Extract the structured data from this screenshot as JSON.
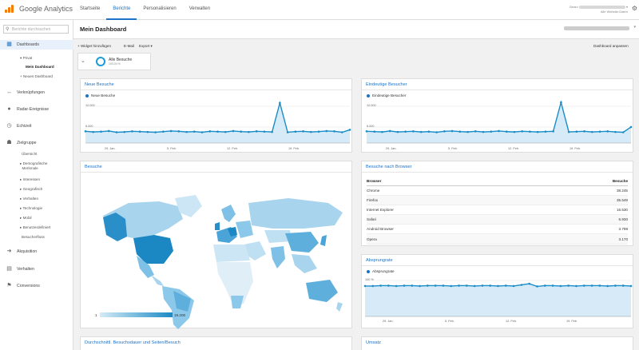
{
  "app": {
    "name": "Google Analytics"
  },
  "topnav": {
    "tabs": [
      "Startseite",
      "Berichte",
      "Personalisieren",
      "Verwalten"
    ],
    "active": 1
  },
  "account": {
    "line1": "Beam",
    "line2": "Alle Website-Daten"
  },
  "sidebar": {
    "search_placeholder": "Berichte durchsuchen",
    "sections": [
      {
        "label": "Dashboards",
        "icon": "dashboard-icon"
      },
      {
        "label": "Verknüpfungen",
        "icon": "shortcut-icon"
      },
      {
        "label": "Radar-Ereignisse",
        "icon": "radar-icon"
      },
      {
        "label": "Echtzeit",
        "icon": "realtime-icon"
      },
      {
        "label": "Zielgruppe",
        "icon": "audience-icon"
      },
      {
        "label": "Akquisition",
        "icon": "acquisition-icon"
      },
      {
        "label": "Verhalten",
        "icon": "behavior-icon"
      },
      {
        "label": "Conversions",
        "icon": "conversions-icon"
      }
    ],
    "dashboard_items": [
      "Privat",
      "Mein Dashboard",
      "+ Neues Dashboard"
    ],
    "audience_items": [
      "Übersicht",
      "Demografische Merkmale",
      "Interessen",
      "Geografisch",
      "Verhalten",
      "Technologie",
      "Mobil",
      "Benutzerdefiniert",
      "Besucherfluss"
    ]
  },
  "page": {
    "title": "Mein Dashboard"
  },
  "toolbar": {
    "add_widget": "+ Widget hinzufügen",
    "email": "E-Mail",
    "export": "Export ▾",
    "customize": "Dashboard anpassen"
  },
  "segment": {
    "title": "Alle Besuche",
    "sub": "100,00 %"
  },
  "widgets": {
    "neue_besuche": {
      "title": "Neue Besuche",
      "legend": "Neue Besuche",
      "y_ticks": [
        "12.000",
        "6.000"
      ],
      "x_ticks": [
        "29. Jan.",
        "5. Feb.",
        "12. Feb.",
        "19. Feb."
      ]
    },
    "eindeutige_besucher": {
      "title": "Eindeutige Besucher",
      "legend": "Eindeutige Besucher",
      "y_ticks": [
        "12.000",
        "6.000"
      ],
      "x_ticks": [
        "29. Jan.",
        "5. Feb.",
        "12. Feb.",
        "19. Feb."
      ]
    },
    "besuche": {
      "title": "Besuche",
      "legend_min": "1",
      "legend_max": "19.200"
    },
    "browser": {
      "title": "Besuche nach Browser",
      "col_browser": "Browser",
      "col_visits": "Besuche",
      "rows": [
        {
          "browser": "Chrome",
          "visits": "38.245"
        },
        {
          "browser": "Firefox",
          "visits": "35.549"
        },
        {
          "browser": "Internet Explorer",
          "visits": "16.530"
        },
        {
          "browser": "Safari",
          "visits": "6.930"
        },
        {
          "browser": "Android Browser",
          "visits": "3.798"
        },
        {
          "browser": "Opera",
          "visits": "3.170"
        }
      ]
    },
    "absprungrate": {
      "title": "Absprungrate",
      "legend": "Absprungrate",
      "y_ticks": [
        "100 %",
        "50 %"
      ],
      "x_ticks": [
        "29. Jan.",
        "5. Feb.",
        "12. Feb.",
        "19. Feb."
      ]
    },
    "dauer": {
      "title": "Durchschnittl. Besuchsdauer und Seiten/Besuch"
    },
    "umsatz": {
      "title": "Umsatz"
    }
  },
  "chart_data": [
    {
      "type": "area",
      "title": "Neue Besuche",
      "series": [
        {
          "name": "Neue Besuche",
          "values": [
            3800,
            3600,
            3700,
            3900,
            3500,
            3600,
            3800,
            3700,
            3600,
            3500,
            3700,
            3900,
            3800,
            3600,
            3700,
            3500,
            3800,
            3700,
            3600,
            3900,
            3700,
            3600,
            3800,
            3700,
            3600,
            13000,
            3500,
            3700,
            3800,
            3600,
            3700,
            3900,
            3800,
            3500,
            4300
          ]
        }
      ],
      "ylim": [
        0,
        14000
      ]
    },
    {
      "type": "area",
      "title": "Eindeutige Besucher",
      "series": [
        {
          "name": "Eindeutige Besucher",
          "values": [
            3800,
            3700,
            3600,
            3900,
            3600,
            3700,
            3800,
            3600,
            3700,
            3500,
            3800,
            3900,
            3700,
            3600,
            3800,
            3600,
            3700,
            3900,
            3700,
            3600,
            3800,
            3700,
            3600,
            3700,
            3800,
            13200,
            3600,
            3700,
            3800,
            3600,
            3700,
            3800,
            3600,
            3500,
            5200
          ]
        }
      ],
      "ylim": [
        0,
        14000
      ]
    },
    {
      "type": "area",
      "title": "Absprungrate",
      "series": [
        {
          "name": "Absprungrate",
          "values": [
            79,
            79,
            80,
            80,
            79,
            80,
            80,
            79,
            80,
            80,
            80,
            79,
            80,
            80,
            79,
            80,
            80,
            79,
            80,
            79,
            82,
            85,
            78,
            80,
            80,
            79,
            80,
            79,
            80,
            80,
            80,
            79,
            80,
            80,
            79
          ]
        }
      ],
      "ylim": [
        0,
        110
      ]
    }
  ],
  "colors": {
    "accent": "#1a73c8",
    "line": "#1a8cc8",
    "fill": "#d6ebf7",
    "map_low": "#d4ebf7",
    "map_high": "#1b8ac4"
  }
}
